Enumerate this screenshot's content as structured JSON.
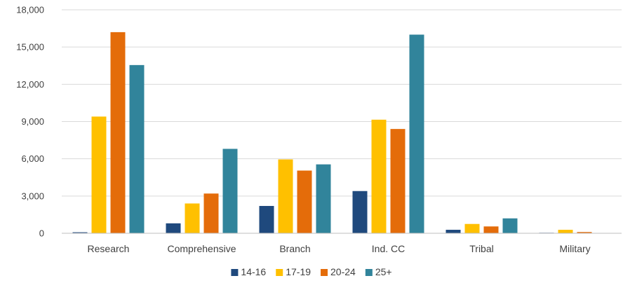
{
  "chart_data": {
    "type": "bar",
    "categories": [
      "Research",
      "Comprehensive",
      "Branch",
      "Ind. CC",
      "Tribal",
      "Military"
    ],
    "series": [
      {
        "name": "14-16",
        "color": "#1f497d",
        "values": [
          80,
          800,
          2200,
          3400,
          280,
          40
        ]
      },
      {
        "name": "17-19",
        "color": "#ffc000",
        "values": [
          9400,
          2400,
          5950,
          9150,
          750,
          280
        ]
      },
      {
        "name": "20-24",
        "color": "#e46c0a",
        "values": [
          16200,
          3200,
          5050,
          8400,
          550,
          100
        ]
      },
      {
        "name": "25+",
        "color": "#31849b",
        "values": [
          13550,
          6800,
          5550,
          16000,
          1200,
          0
        ]
      }
    ],
    "y_ticks": [
      "0",
      "3,000",
      "6,000",
      "9,000",
      "12,000",
      "15,000",
      "18,000"
    ],
    "ylim": [
      0,
      18000
    ],
    "grid": true,
    "legend_position": "bottom"
  }
}
